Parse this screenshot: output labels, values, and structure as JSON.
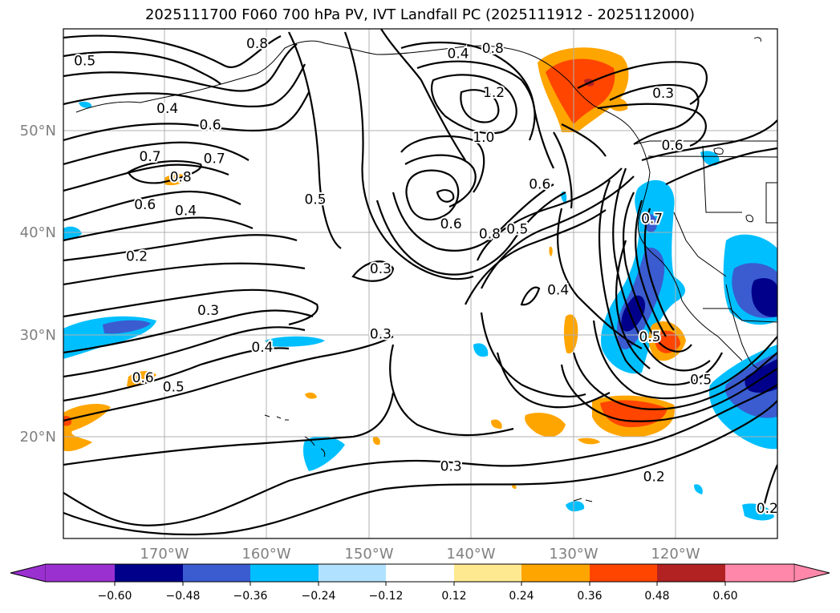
{
  "title": "2025111700 F060 700 hPa PV, IVT Landfall PC (2025111912 - 2025112000)",
  "map": {
    "lat_labels": [
      "50°N",
      "40°N",
      "30°N",
      "20°N"
    ],
    "lon_labels": [
      "170°W",
      "160°W",
      "150°W",
      "140°W",
      "130°W",
      "120°W"
    ],
    "lon_range": [
      -180,
      -110
    ],
    "lat_range": [
      10,
      60
    ],
    "pv_contour_labels": [
      {
        "text": "0.5",
        "lon": -177.9,
        "lat": 56.9
      },
      {
        "text": "0.8",
        "lon": -161.0,
        "lat": 58.6
      },
      {
        "text": "0.4",
        "lon": -169.8,
        "lat": 52.2
      },
      {
        "text": "0.6",
        "lon": -165.6,
        "lat": 50.6
      },
      {
        "text": "0.7",
        "lon": -171.5,
        "lat": 47.5
      },
      {
        "text": "0.7",
        "lon": -165.2,
        "lat": 47.3
      },
      {
        "text": "0.8",
        "lon": -168.5,
        "lat": 45.5
      },
      {
        "text": "0.6",
        "lon": -172.0,
        "lat": 42.8
      },
      {
        "text": "0.4",
        "lon": -168.0,
        "lat": 42.2
      },
      {
        "text": "0.2",
        "lon": -172.8,
        "lat": 37.7
      },
      {
        "text": "0.5",
        "lon": -155.3,
        "lat": 43.3
      },
      {
        "text": "0.4",
        "lon": -141.3,
        "lat": 57.6
      },
      {
        "text": "0.8",
        "lon": -137.9,
        "lat": 58.1
      },
      {
        "text": "1.2",
        "lon": -137.8,
        "lat": 53.8
      },
      {
        "text": "1.0",
        "lon": -138.8,
        "lat": 49.4
      },
      {
        "text": "0.6",
        "lon": -142.0,
        "lat": 40.9
      },
      {
        "text": "0.8",
        "lon": -138.2,
        "lat": 39.9
      },
      {
        "text": "0.5",
        "lon": -135.5,
        "lat": 40.4
      },
      {
        "text": "0.6",
        "lon": -133.3,
        "lat": 44.8
      },
      {
        "text": "0.3",
        "lon": -148.9,
        "lat": 36.5
      },
      {
        "text": "0.3",
        "lon": -148.9,
        "lat": 30.1
      },
      {
        "text": "0.3",
        "lon": -165.8,
        "lat": 32.4
      },
      {
        "text": "0.4",
        "lon": -160.5,
        "lat": 28.8
      },
      {
        "text": "0.6",
        "lon": -172.2,
        "lat": 25.8
      },
      {
        "text": "0.5",
        "lon": -169.2,
        "lat": 24.9
      },
      {
        "text": "0.4",
        "lon": -131.5,
        "lat": 34.4
      },
      {
        "text": "0.7",
        "lon": -122.3,
        "lat": 41.4
      },
      {
        "text": "0.5",
        "lon": -122.5,
        "lat": 29.8
      },
      {
        "text": "0.5",
        "lon": -117.5,
        "lat": 25.6
      },
      {
        "text": "0.3",
        "lon": -121.2,
        "lat": 53.7
      },
      {
        "text": "0.6",
        "lon": -120.3,
        "lat": 48.6
      },
      {
        "text": "0.3",
        "lon": -142.0,
        "lat": 17.1
      },
      {
        "text": "0.2",
        "lon": -122.1,
        "lat": 16.1
      },
      {
        "text": "0.2",
        "lon": -111.0,
        "lat": 13.0
      }
    ]
  },
  "colorbar": {
    "tick_labels": [
      "−0.60",
      "−0.48",
      "−0.36",
      "−0.24",
      "−0.12",
      "0.12",
      "0.24",
      "0.36",
      "0.48",
      "0.60"
    ],
    "levels": [
      -0.6,
      -0.48,
      -0.36,
      -0.24,
      -0.12,
      0.12,
      0.24,
      0.36,
      0.48,
      0.6
    ],
    "colors": {
      "under": "#9b30d0",
      "neg_060_048": "#00008b",
      "neg_048_036": "#3a5cd0",
      "neg_036_024": "#00bfff",
      "neg_024_012": "#b0e2ff",
      "neutral": "#ffffff",
      "pos_012_024": "#ffe990",
      "pos_024_036": "#ffa500",
      "pos_036_048": "#ff4500",
      "pos_048_060": "#b22222",
      "over": "#ff88aa"
    }
  }
}
